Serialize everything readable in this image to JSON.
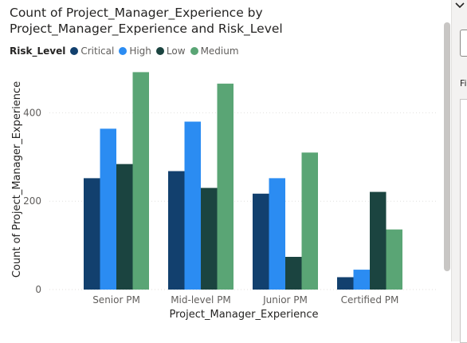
{
  "chart_data": {
    "type": "bar",
    "title": "Count of Project_Manager_Experience by Project_Manager_Experience and Risk_Level",
    "xlabel": "Project_Manager_Experience",
    "ylabel": "Count of Project_Manager_Experience",
    "categories": [
      "Senior PM",
      "Mid-level PM",
      "Junior PM",
      "Certified PM"
    ],
    "series": [
      {
        "name": "Critical",
        "color": "#12406e",
        "values": [
          252,
          268,
          217,
          28
        ]
      },
      {
        "name": "High",
        "color": "#2b8cf2",
        "values": [
          364,
          380,
          252,
          45
        ]
      },
      {
        "name": "Low",
        "color": "#1b4440",
        "values": [
          284,
          230,
          74,
          221
        ]
      },
      {
        "name": "Medium",
        "color": "#5aa575",
        "values": [
          492,
          466,
          310,
          136
        ]
      }
    ],
    "ylim": [
      0,
      500
    ],
    "yticks": [
      0,
      200,
      400
    ],
    "grid": true,
    "legend": {
      "title": "Risk_Level",
      "position": "top-left"
    }
  },
  "side_pane": {
    "chevron_icon": "chevron-down-icon",
    "label": "Fi"
  }
}
